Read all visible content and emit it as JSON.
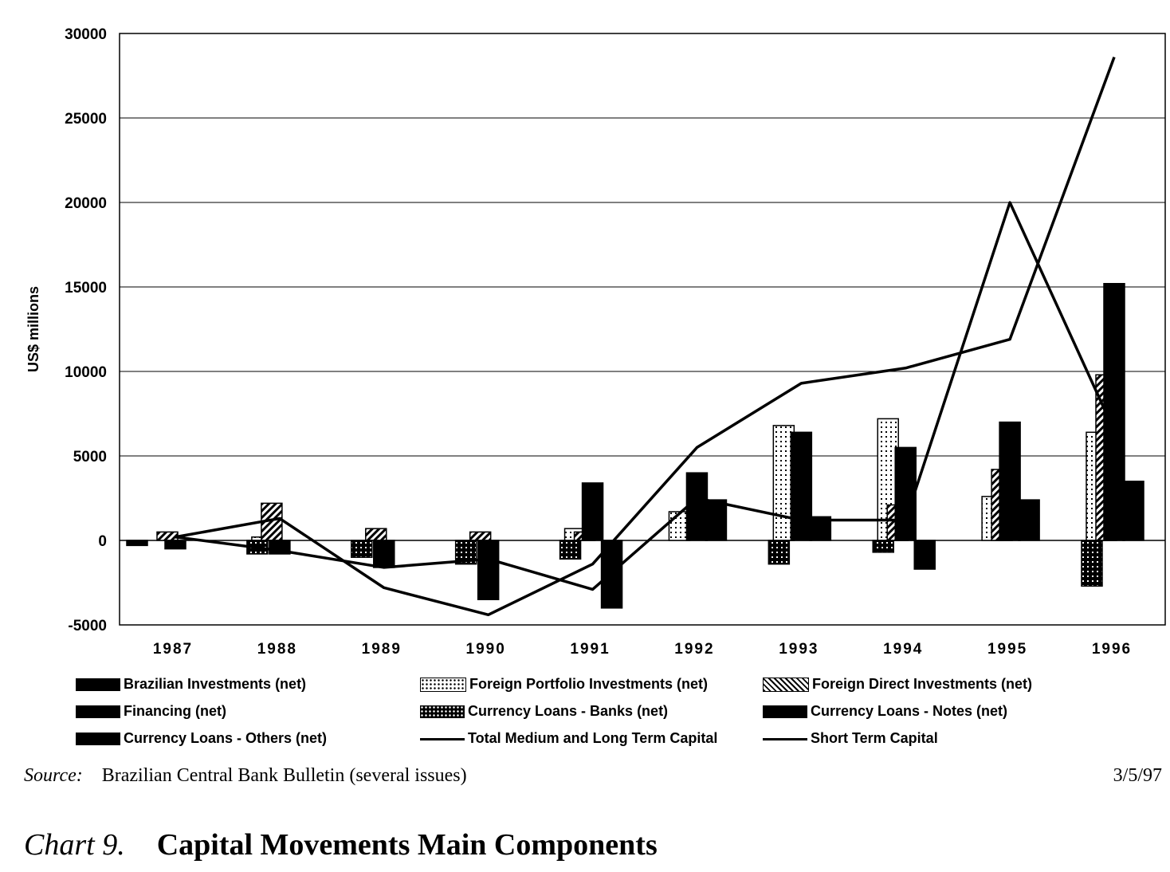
{
  "chart_data": {
    "type": "bar",
    "ylabel": "US$ millions",
    "ylim": [
      -5000,
      30000
    ],
    "yticks": [
      30000,
      25000,
      20000,
      15000,
      10000,
      5000,
      0,
      -5000
    ],
    "categories": [
      "1987",
      "1988",
      "1989",
      "1990",
      "1991",
      "1992",
      "1993",
      "1994",
      "1995",
      "1996"
    ],
    "grid": "horizontal",
    "legend_position": "bottom",
    "series": [
      {
        "name": "Brazilian Investments (net)",
        "kind": "bar",
        "values": [
          -300,
          0,
          0,
          0,
          0,
          0,
          0,
          0,
          0,
          0
        ]
      },
      {
        "name": "Foreign  Portfolio Investments (net)",
        "kind": "bar",
        "values": [
          0,
          200,
          0,
          0,
          700,
          1700,
          6800,
          7200,
          2600,
          6400
        ]
      },
      {
        "name": "Foreign  Direct Investments (net)",
        "kind": "bar",
        "values": [
          500,
          2200,
          700,
          500,
          500,
          0,
          0,
          2100,
          4200,
          9800
        ]
      },
      {
        "name": "Financing (net)",
        "kind": "bar",
        "values": [
          0,
          0,
          0,
          0,
          0,
          0,
          0,
          0,
          0,
          0
        ]
      },
      {
        "name": "Currency Loans - Banks (net)",
        "kind": "bar",
        "values": [
          0,
          -800,
          -1000,
          -1400,
          -1100,
          0,
          -1400,
          -700,
          0,
          -2700
        ]
      },
      {
        "name": "Currency Loans - Notes (net)",
        "kind": "bar",
        "values": [
          -500,
          -800,
          -1600,
          -3500,
          3400,
          4000,
          6400,
          5500,
          7000,
          15200
        ]
      },
      {
        "name": "Currency Loans - Others (net)",
        "kind": "bar",
        "values": [
          0,
          0,
          0,
          0,
          -4000,
          2400,
          1400,
          -1700,
          2400,
          3500
        ]
      },
      {
        "name": "Total Medium and Long Term Capital",
        "kind": "line",
        "values": [
          200,
          -600,
          -1600,
          -1100,
          -2900,
          2500,
          1200,
          1200,
          20000,
          6500
        ]
      },
      {
        "name": "Short Term Capital",
        "kind": "line",
        "values": [
          200,
          1300,
          -2800,
          -4400,
          -1400,
          5500,
          9300,
          10200,
          11900,
          28600
        ]
      }
    ]
  },
  "legend": {
    "items": [
      {
        "label": "Brazilian Investments (net)",
        "pattern": "solid"
      },
      {
        "label": "Foreign  Portfolio Investments (net)",
        "pattern": "dots"
      },
      {
        "label": "Foreign  Direct Investments (net)",
        "pattern": "hatch"
      },
      {
        "label": "Financing (net)",
        "pattern": "solid"
      },
      {
        "label": "Currency Loans - Banks (net)",
        "pattern": "grid"
      },
      {
        "label": "Currency Loans - Notes (net)",
        "pattern": "solid"
      },
      {
        "label": "Currency Loans - Others (net)",
        "pattern": "solid"
      },
      {
        "label": "Total Medium and Long Term Capital",
        "pattern": "line"
      },
      {
        "label": "Short Term Capital",
        "pattern": "line"
      }
    ]
  },
  "source": {
    "label": "Source:",
    "text": "Brazilian Central Bank Bulletin (several issues)"
  },
  "date": "3/5/97",
  "caption": {
    "number": "Chart 9.",
    "title": "Capital Movements Main Components"
  }
}
